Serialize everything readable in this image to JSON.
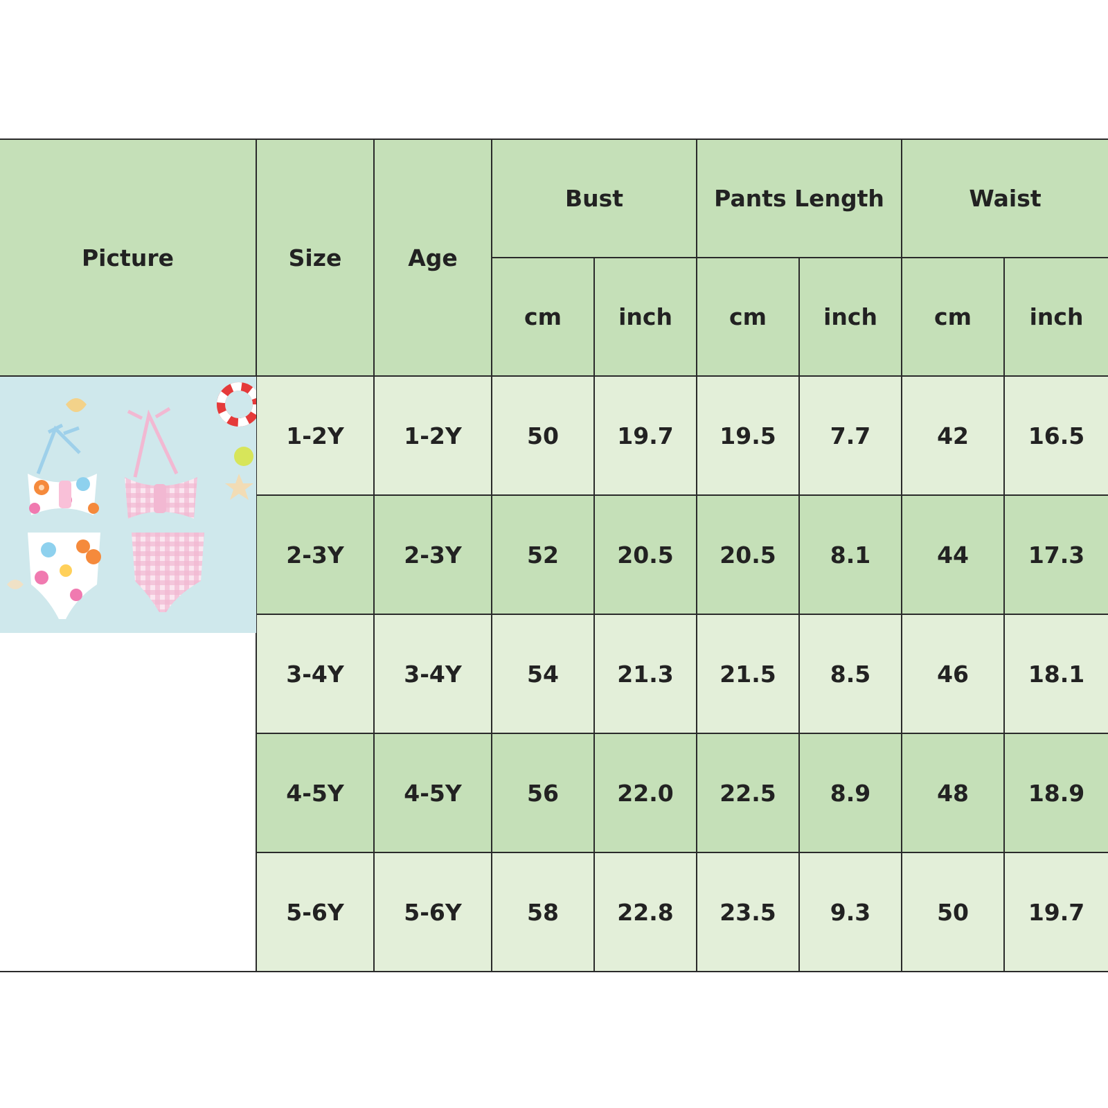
{
  "table": {
    "headers": {
      "picture": "Picture",
      "size": "Size",
      "age": "Age",
      "bust": "Bust",
      "pants_length": "Pants Length",
      "waist": "Waist",
      "units": [
        "cm",
        "inch",
        "cm",
        "inch",
        "cm",
        "inch"
      ]
    },
    "rows": [
      {
        "size": "1-2Y",
        "age": "1-2Y",
        "bust_cm": "50",
        "bust_inch": "19.7",
        "pants_cm": "19.5",
        "pants_inch": "7.7",
        "waist_cm": "42",
        "waist_inch": "16.5"
      },
      {
        "size": "2-3Y",
        "age": "2-3Y",
        "bust_cm": "52",
        "bust_inch": "20.5",
        "pants_cm": "20.5",
        "pants_inch": "8.1",
        "waist_cm": "44",
        "waist_inch": "17.3"
      },
      {
        "size": "3-4Y",
        "age": "3-4Y",
        "bust_cm": "54",
        "bust_inch": "21.3",
        "pants_cm": "21.5",
        "pants_inch": "8.5",
        "waist_cm": "46",
        "waist_inch": "18.1"
      },
      {
        "size": "4-5Y",
        "age": "4-5Y",
        "bust_cm": "56",
        "bust_inch": "22.0",
        "pants_cm": "22.5",
        "pants_inch": "8.9",
        "waist_cm": "48",
        "waist_inch": "18.9"
      },
      {
        "size": "5-6Y",
        "age": "5-6Y",
        "bust_cm": "58",
        "bust_inch": "22.8",
        "pants_cm": "23.5",
        "pants_inch": "9.3",
        "waist_cm": "50",
        "waist_inch": "19.7"
      }
    ]
  },
  "colors": {
    "header_green": "#c5e0b8",
    "row_light": "#e3efd9",
    "row_dark": "#c5e0b8",
    "border": "#2a2a2a"
  }
}
